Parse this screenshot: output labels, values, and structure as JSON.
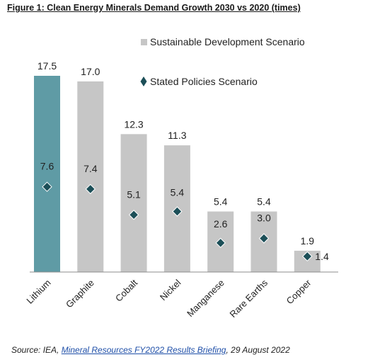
{
  "title": "Figure 1: Clean Energy Minerals Demand Growth 2030 vs 2020 (times)",
  "source": {
    "prefix": "Source: IEA, ",
    "link_text": "Mineral Resources FY2022 Results Briefing",
    "suffix": ", 29 August 2022"
  },
  "colors": {
    "highlight_bar": "#5f9ba5",
    "bar": "#c6c6c6",
    "marker": "#1c4f58",
    "axis": "#8c8c8c"
  },
  "chart_data": {
    "type": "bar",
    "categories": [
      "Lithium",
      "Graphite",
      "Cobalt",
      "Nickel",
      "Manganese",
      "Rare Earths",
      "Copper"
    ],
    "series": [
      {
        "name": "Sustainable Development Scenario",
        "type": "bar",
        "values": [
          17.5,
          17.0,
          12.3,
          11.3,
          5.4,
          5.4,
          1.9
        ]
      },
      {
        "name": "Stated Policies Scenario",
        "type": "marker",
        "values": [
          7.6,
          7.4,
          5.1,
          5.4,
          2.6,
          3.0,
          1.4
        ]
      }
    ],
    "value_labels": {
      "bars": [
        "17.5",
        "17.0",
        "12.3",
        "11.3",
        "5.4",
        "5.4",
        "1.9"
      ],
      "markers": [
        "7.6",
        "7.4",
        "5.1",
        "5.4",
        "2.6",
        "3.0",
        "1.4"
      ]
    },
    "highlighted_category": "Lithium",
    "ylim": [
      0,
      17.5
    ],
    "grid": false,
    "legend_position": "top-right"
  }
}
